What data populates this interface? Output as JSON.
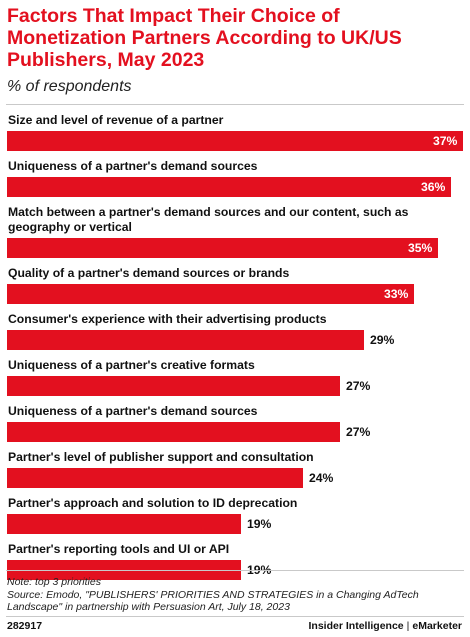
{
  "chart_data": {
    "type": "bar",
    "orientation": "horizontal",
    "title": "Factors That Impact Their Choice of Monetization Partners According to UK/US Publishers, May 2023",
    "subtitle": "% of respondents",
    "categories": [
      "Size and level of revenue of a partner",
      "Uniqueness of a partner's demand sources",
      "Match between a partner's demand sources and our content, such as geography or vertical",
      "Quality of a partner's demand sources or brands",
      "Consumer's experience with their advertising products",
      "Uniqueness of a partner's creative formats",
      "Uniqueness of a partner's demand sources",
      "Partner's level of publisher support and consultation",
      "Partner's approach and solution to ID deprecation",
      "Partner's reporting tools and UI or API"
    ],
    "values": [
      37,
      36,
      35,
      33,
      29,
      27,
      27,
      24,
      19,
      19
    ],
    "value_suffix": "%",
    "xlim": [
      0,
      37
    ],
    "grid": false,
    "legend": "none",
    "bar_color": "#e3101f"
  },
  "footer": {
    "note": "Note: top 3 priorities",
    "source": "Source: Emodo, \"PUBLISHERS' PRIORITIES AND STRATEGIES in a Changing AdTech Landscape\" in partnership with Persuasion Art, July 18, 2023",
    "chart_id": "282917",
    "brand_left": "Insider Intelligence",
    "brand_sep": "|",
    "brand_right": "eMarketer"
  }
}
